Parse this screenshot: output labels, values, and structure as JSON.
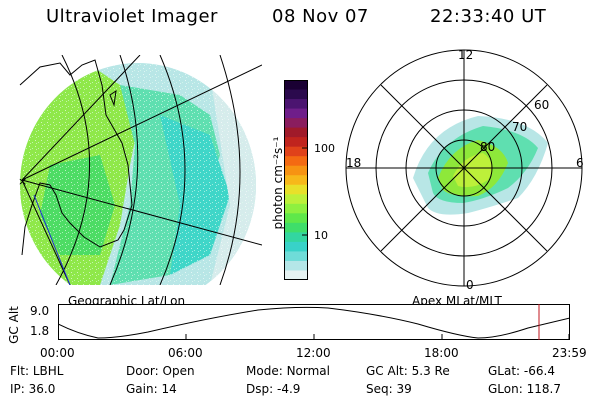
{
  "header": {
    "instrument": "Ultraviolet Imager",
    "date": "08 Nov 07",
    "time": "22:33:40 UT"
  },
  "colorbar": {
    "label": "photon cm⁻²s⁻¹",
    "ticks": [
      "100",
      "10"
    ],
    "colors": [
      "#1a0033",
      "#2b0a4d",
      "#4b1470",
      "#6f1e8a",
      "#8a1d5e",
      "#a01a2a",
      "#c0241e",
      "#e0421a",
      "#f46a12",
      "#f79312",
      "#f7b81a",
      "#e8e02a",
      "#bdf03a",
      "#8ef040",
      "#5fe84a",
      "#3fde6a",
      "#33d6a0",
      "#38d2c8",
      "#6fdcd8",
      "#b4e6e8",
      "#e6f2f2"
    ]
  },
  "left_panel": {
    "caption": "Geographic Lat/Lon"
  },
  "right_panel": {
    "caption": "Apex MLat/MLT",
    "mlt_labels": [
      "12",
      "18",
      "6",
      "0"
    ],
    "lat_labels": [
      "60",
      "70",
      "80"
    ]
  },
  "altitude_plot": {
    "ylabel": "GC Alt",
    "yticks": [
      "9.0",
      "1.8"
    ],
    "xticks": [
      "00:00",
      "06:00",
      "12:00",
      "18:00",
      "23:59"
    ]
  },
  "footer": {
    "row1": [
      {
        "key": "Flt:",
        "val": "LBHL"
      },
      {
        "key": "Door:",
        "val": "Open"
      },
      {
        "key": "Mode:",
        "val": "Normal"
      },
      {
        "key": "GC Alt:",
        "val": "5.3 Re"
      },
      {
        "key": "GLat:",
        "val": "-66.4"
      }
    ],
    "row2": [
      {
        "key": "IP:",
        "val": "36.0"
      },
      {
        "key": "Gain:",
        "val": "14"
      },
      {
        "key": "Dsp:",
        "val": "-4.9"
      },
      {
        "key": "Seq:",
        "val": "39"
      },
      {
        "key": "GLon:",
        "val": "118.7"
      }
    ]
  }
}
